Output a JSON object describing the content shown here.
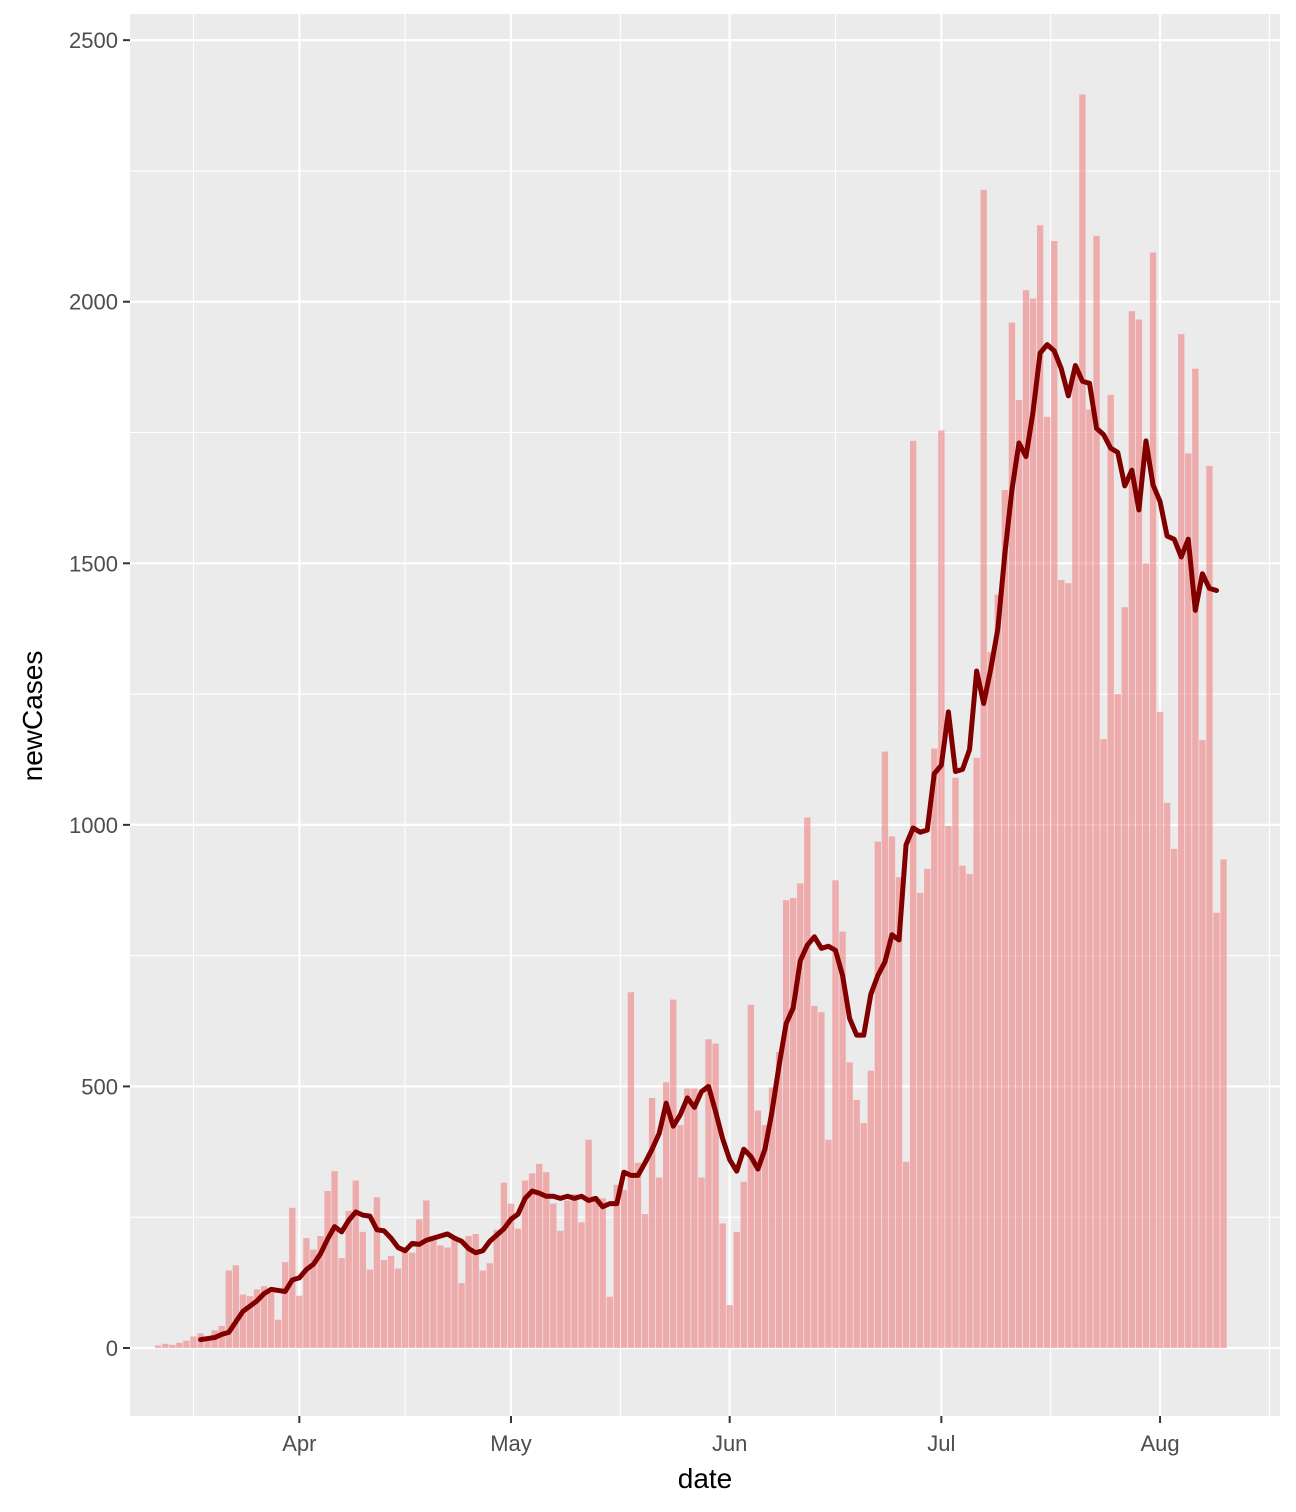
{
  "chart_data": {
    "type": "bar",
    "xlabel": "date",
    "ylabel": "newCases",
    "ylim": [
      -130,
      2550
    ],
    "xlim": [
      "2020-03-08",
      "2020-08-18"
    ],
    "grid": true,
    "legend": "none",
    "y_ticks": [
      0,
      500,
      1000,
      1500,
      2000,
      2500
    ],
    "x_ticks": [
      {
        "date": "2020-04-01",
        "label": "Apr"
      },
      {
        "date": "2020-05-01",
        "label": "May"
      },
      {
        "date": "2020-06-01",
        "label": "Jun"
      },
      {
        "date": "2020-07-01",
        "label": "Jul"
      },
      {
        "date": "2020-08-01",
        "label": "Aug"
      }
    ],
    "colors": {
      "bar": "#F08080",
      "line": "#800000",
      "panel": "#EBEBEB",
      "grid": "#FFFFFF"
    },
    "series": [
      {
        "type": "bar",
        "start_date": "2020-03-12",
        "values": [
          5,
          8,
          6,
          10,
          14,
          22,
          28,
          20,
          34,
          42,
          148,
          158,
          102,
          99,
          112,
          118,
          106,
          54,
          164,
          268,
          100,
          210,
          188,
          214,
          300,
          338,
          172,
          262,
          320,
          222,
          150,
          288,
          168,
          176,
          152,
          188,
          182,
          246,
          282,
          214,
          196,
          192,
          212,
          124,
          214,
          218,
          148,
          162,
          226,
          316,
          276,
          228,
          320,
          334,
          352,
          336,
          276,
          224,
          282,
          294,
          240,
          398,
          290,
          286,
          98,
          312,
          302,
          680,
          354,
          256,
          478,
          326,
          508,
          666,
          426,
          496,
          496,
          326,
          590,
          582,
          238,
          82,
          222,
          318,
          656,
          454,
          426,
          498,
          566,
          856,
          860,
          888,
          1014,
          654,
          642,
          398,
          894,
          796,
          546,
          474,
          430,
          530,
          968,
          1140,
          978,
          900,
          356,
          1734,
          870,
          916,
          1146,
          1754,
          998,
          1090,
          922,
          906,
          1128,
          2214,
          1330,
          1440,
          1640,
          1960,
          1812,
          2022,
          2006,
          2146,
          1780,
          2116,
          1468,
          1462,
          1876,
          2396,
          1794,
          2126,
          1164,
          1822,
          1250,
          1416,
          1982,
          1966,
          1500,
          2094,
          1216,
          1042,
          954,
          1938,
          1710,
          1872,
          1162,
          1686,
          832,
          934
        ]
      },
      {
        "type": "line",
        "start_date": "2020-03-18",
        "values": [
          16,
          18,
          20,
          26,
          30,
          50,
          70,
          80,
          90,
          104,
          112,
          110,
          108,
          130,
          134,
          150,
          160,
          180,
          208,
          232,
          222,
          244,
          260,
          254,
          252,
          226,
          224,
          210,
          192,
          186,
          200,
          198,
          206,
          210,
          214,
          218,
          210,
          204,
          190,
          182,
          186,
          204,
          216,
          228,
          246,
          256,
          286,
          300,
          296,
          290,
          290,
          286,
          290,
          286,
          290,
          282,
          286,
          270,
          276,
          276,
          336,
          330,
          330,
          354,
          380,
          410,
          468,
          424,
          446,
          478,
          460,
          490,
          500,
          452,
          400,
          360,
          338,
          380,
          366,
          342,
          380,
          452,
          540,
          620,
          650,
          740,
          770,
          786,
          764,
          768,
          760,
          712,
          630,
          598,
          598,
          676,
          712,
          738,
          790,
          780,
          962,
          994,
          986,
          990,
          1098,
          1114,
          1216,
          1102,
          1106,
          1144,
          1294,
          1232,
          1298,
          1374,
          1518,
          1640,
          1730,
          1704,
          1790,
          1902,
          1918,
          1906,
          1872,
          1820,
          1878,
          1848,
          1844,
          1758,
          1746,
          1720,
          1712,
          1648,
          1678,
          1602,
          1734,
          1650,
          1618,
          1552,
          1546,
          1512,
          1546,
          1410,
          1480,
          1452,
          1448
        ]
      }
    ]
  }
}
